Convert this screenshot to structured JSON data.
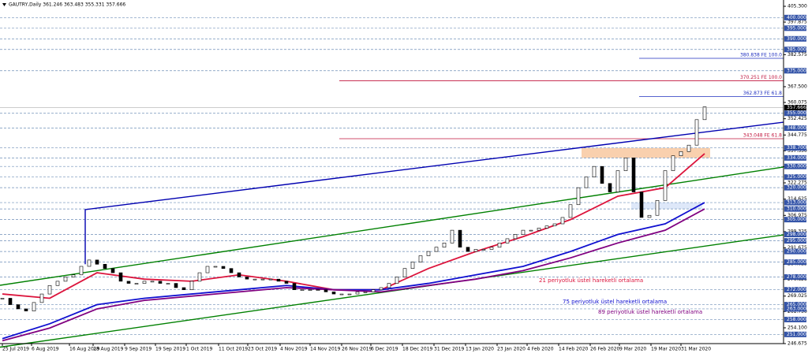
{
  "chart_data": {
    "type": "candlestick",
    "title": "GAUTRY,Daily  361.246 363.483 355.331 357.666",
    "ylim": [
      246.675,
      405.3
    ],
    "close": [
      268,
      265,
      263,
      262,
      266,
      270,
      274,
      276,
      278,
      279,
      283,
      286,
      284,
      282,
      280,
      276,
      275,
      275,
      276,
      276,
      275,
      275,
      273,
      272,
      276,
      280,
      283,
      283,
      282,
      280,
      278,
      277,
      277,
      277,
      277,
      276,
      275,
      272,
      272,
      272,
      272,
      271,
      270,
      270,
      270,
      271,
      271,
      272,
      273,
      275,
      278,
      282,
      285,
      288,
      290,
      292,
      294,
      300,
      292,
      290,
      291,
      291,
      292,
      294,
      296,
      298,
      300,
      300,
      301,
      302,
      303,
      306,
      312,
      320,
      325,
      330,
      322,
      318,
      328,
      334,
      318,
      306,
      307,
      314,
      328,
      335,
      337,
      340,
      352,
      358
    ],
    "xticks": [
      {
        "value": 0,
        "label": "25 Jul 2019"
      },
      {
        "value": 3.7,
        "label": "6 Aug 2019"
      },
      {
        "value": 8.5,
        "label": "16 Aug 2019"
      },
      {
        "value": 11.5,
        "label": "28 Aug 2019"
      },
      {
        "value": 15.5,
        "label": "9 Sep 2019"
      },
      {
        "value": 19.4,
        "label": "19 Sep 2019"
      },
      {
        "value": 23.3,
        "label": "1 Oct 2019"
      },
      {
        "value": 27.4,
        "label": "11 Oct 2019"
      },
      {
        "value": 31.1,
        "label": "23 Oct 2019"
      },
      {
        "value": 35.2,
        "label": "4 Nov 2019"
      },
      {
        "value": 39,
        "label": "14 Nov 2019"
      },
      {
        "value": 43,
        "label": "26 Nov 2019"
      },
      {
        "value": 46.7,
        "label": "6 Dec 2019"
      },
      {
        "value": 50.7,
        "label": "18 Dec 2019"
      },
      {
        "value": 54.7,
        "label": "31 Dec 2019"
      },
      {
        "value": 58.7,
        "label": "13 Jan 2020"
      },
      {
        "value": 62.7,
        "label": "23 Jan 2020"
      },
      {
        "value": 66.5,
        "label": "4 Feb 2020"
      },
      {
        "value": 70.5,
        "label": "14 Feb 2020"
      },
      {
        "value": 74.5,
        "label": "26 Feb 2020"
      },
      {
        "value": 78.2,
        "label": "9 Mar 2020"
      },
      {
        "value": 82.2,
        "label": "19 Mar 2020"
      },
      {
        "value": 86,
        "label": "31 Mar 2020"
      }
    ],
    "yticks": [
      {
        "value": 405.3,
        "label": "405.300"
      },
      {
        "value": 397.875,
        "label": "397.875"
      },
      {
        "value": 382.575,
        "label": "382.575"
      },
      {
        "value": 367.5,
        "label": "367.500"
      },
      {
        "value": 360.075,
        "label": "360.075"
      },
      {
        "value": 352.425,
        "label": "352.425"
      },
      {
        "value": 344.775,
        "label": "344.775"
      },
      {
        "value": 337.35,
        "label": "337.350"
      },
      {
        "value": 329.925,
        "label": "329.925"
      },
      {
        "value": 322.275,
        "label": "322.275"
      },
      {
        "value": 314.625,
        "label": "314.625"
      },
      {
        "value": 306.975,
        "label": "306.975"
      },
      {
        "value": 299.325,
        "label": "299.325"
      },
      {
        "value": 291.675,
        "label": "291.675"
      },
      {
        "value": 284.025,
        "label": "284.025"
      },
      {
        "value": 276.825,
        "label": "276.825"
      },
      {
        "value": 269.025,
        "label": "269.025"
      },
      {
        "value": 261.75,
        "label": "261.750"
      },
      {
        "value": 254.1,
        "label": "254.100"
      },
      {
        "value": 246.675,
        "label": "246.675"
      }
    ],
    "levels": [
      {
        "value": 400,
        "label": "400.000"
      },
      {
        "value": 395,
        "label": "395.000"
      },
      {
        "value": 390,
        "label": "390.000"
      },
      {
        "value": 385,
        "label": "385.000"
      },
      {
        "value": 375,
        "label": "375.000"
      },
      {
        "value": 355,
        "label": "355.000"
      },
      {
        "value": 348,
        "label": "348.000"
      },
      {
        "value": 338.7,
        "label": "338.700"
      },
      {
        "value": 334,
        "label": "334.000"
      },
      {
        "value": 330,
        "label": "330.000"
      },
      {
        "value": 325,
        "label": "325.000"
      },
      {
        "value": 320,
        "label": "320.000"
      },
      {
        "value": 313,
        "label": "313.000"
      },
      {
        "value": 310,
        "label": "310.000"
      },
      {
        "value": 305,
        "label": "305.000"
      },
      {
        "value": 298,
        "label": "298.000"
      },
      {
        "value": 295,
        "label": "295.000"
      },
      {
        "value": 290,
        "label": "290.000"
      },
      {
        "value": 285,
        "label": "285.000"
      },
      {
        "value": 278,
        "label": "278.000"
      },
      {
        "value": 272,
        "label": "272.000"
      },
      {
        "value": 265,
        "label": "265.000"
      },
      {
        "value": 263,
        "label": "263.000"
      },
      {
        "value": 258,
        "label": "258.000"
      },
      {
        "value": 251,
        "label": "251.000"
      }
    ],
    "last": {
      "value": 357.666,
      "label": "357.666"
    },
    "fib": [
      {
        "value": 380.838,
        "label": "380.838 FE 100.0",
        "color": "#1f2fbf",
        "from": 80.7
      },
      {
        "value": 370.251,
        "label": "370.251 FE 100.0",
        "color": "#c0143c",
        "from": 42.7
      },
      {
        "value": 362.873,
        "label": "362.873 FE 61.8",
        "color": "#1f2fbf",
        "from": 80.7
      },
      {
        "value": 343.048,
        "label": "343.048 FE 61.8",
        "color": "#c0143c",
        "from": 42.7
      }
    ],
    "zones": [
      {
        "range": [
          334,
          338.7
        ],
        "from": 73.4,
        "to": 89.7,
        "color": "#f8c8a0"
      },
      {
        "range": [
          310,
          313
        ],
        "from": 79.7,
        "to": 88.7,
        "color": "#d8e4f8"
      }
    ],
    "ema_x": [
      0,
      6,
      12,
      18,
      24,
      30,
      36,
      42,
      48,
      54,
      60,
      66,
      72,
      78,
      84,
      89
    ],
    "series": [
      {
        "name": "21 periyotluk üstel hareketli ortalama",
        "color": "#dc143c",
        "values": [
          270,
          268,
          280,
          277,
          276,
          279,
          276,
          272,
          272,
          282,
          290,
          297,
          305,
          316,
          320,
          336
        ]
      },
      {
        "name": "75 periyotluk üstel hareketli ortalama",
        "color": "#1010d0",
        "values": [
          249,
          256,
          265,
          268,
          270,
          272,
          274,
          272,
          272,
          275,
          279,
          283,
          290,
          298,
          303,
          313
        ]
      },
      {
        "name": "89 periyotluk üstel hareketli ortalama",
        "color": "#800080",
        "values": [
          248,
          254,
          263,
          267,
          269,
          271,
          273,
          272,
          271,
          274,
          277,
          281,
          287,
          294,
          300,
          310
        ]
      }
    ],
    "trendlines": [
      {
        "color": "#0000b0",
        "x": [
          10.5,
          10.5,
          99
        ],
        "values": [
          284,
          309.7,
          350.8
        ]
      },
      {
        "color": "#008000",
        "x": [
          -0.3,
          99
        ],
        "values": [
          274.1,
          329.7
        ]
      },
      {
        "color": "#008000",
        "x": [
          -0.3,
          99
        ],
        "values": [
          245,
          297.8
        ]
      }
    ]
  }
}
